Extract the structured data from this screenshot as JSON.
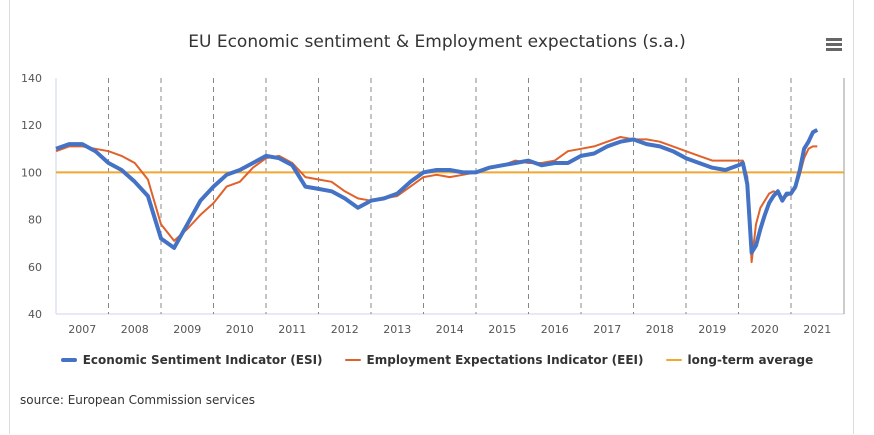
{
  "chart_data": {
    "type": "line",
    "title": "EU Economic sentiment & Employment expectations (s.a.)",
    "ylim": [
      40,
      140
    ],
    "yticks": [
      40,
      60,
      80,
      100,
      120,
      140
    ],
    "xticks": [
      "2007",
      "2008",
      "2009",
      "2010",
      "2011",
      "2012",
      "2013",
      "2014",
      "2015",
      "2016",
      "2017",
      "2018",
      "2019",
      "2020",
      "2021"
    ],
    "grid": "dashed vertical lines at year boundaries",
    "legend_position": "bottom",
    "series": [
      {
        "name": "Economic Sentiment Indicator (ESI)",
        "color": "#4472c4",
        "x": [
          "2007-01",
          "2007-04",
          "2007-07",
          "2007-10",
          "2008-01",
          "2008-04",
          "2008-07",
          "2008-10",
          "2009-01",
          "2009-04",
          "2009-07",
          "2009-10",
          "2010-01",
          "2010-04",
          "2010-07",
          "2010-10",
          "2011-01",
          "2011-04",
          "2011-07",
          "2011-10",
          "2012-01",
          "2012-04",
          "2012-07",
          "2012-10",
          "2013-01",
          "2013-04",
          "2013-07",
          "2013-10",
          "2014-01",
          "2014-04",
          "2014-07",
          "2014-10",
          "2015-01",
          "2015-04",
          "2015-07",
          "2015-10",
          "2016-01",
          "2016-04",
          "2016-07",
          "2016-10",
          "2017-01",
          "2017-04",
          "2017-07",
          "2017-10",
          "2018-01",
          "2018-04",
          "2018-07",
          "2018-10",
          "2019-01",
          "2019-04",
          "2019-07",
          "2019-10",
          "2020-01",
          "2020-02",
          "2020-03",
          "2020-04",
          "2020-05",
          "2020-06",
          "2020-07",
          "2020-08",
          "2020-09",
          "2020-10",
          "2020-11",
          "2020-12",
          "2021-01",
          "2021-02",
          "2021-03",
          "2021-04",
          "2021-05",
          "2021-06",
          "2021-07"
        ],
        "y": [
          110,
          112,
          112,
          109,
          104,
          101,
          96,
          90,
          72,
          68,
          78,
          88,
          94,
          99,
          101,
          104,
          107,
          106,
          103,
          94,
          93,
          92,
          89,
          85,
          88,
          89,
          91,
          96,
          100,
          101,
          101,
          100,
          100,
          102,
          103,
          104,
          105,
          103,
          104,
          104,
          107,
          108,
          111,
          113,
          114,
          112,
          111,
          109,
          106,
          104,
          102,
          101,
          103,
          104,
          95,
          66,
          69,
          76,
          82,
          87,
          90,
          92,
          88,
          91,
          91,
          94,
          101,
          110,
          113,
          117,
          118
        ]
      },
      {
        "name": "Employment Expectations Indicator (EEI)",
        "color": "#e0612a",
        "x": [
          "2007-01",
          "2007-04",
          "2007-07",
          "2007-10",
          "2008-01",
          "2008-04",
          "2008-07",
          "2008-10",
          "2009-01",
          "2009-04",
          "2009-07",
          "2009-10",
          "2010-01",
          "2010-04",
          "2010-07",
          "2010-10",
          "2011-01",
          "2011-04",
          "2011-07",
          "2011-10",
          "2012-01",
          "2012-04",
          "2012-07",
          "2012-10",
          "2013-01",
          "2013-04",
          "2013-07",
          "2013-10",
          "2014-01",
          "2014-04",
          "2014-07",
          "2014-10",
          "2015-01",
          "2015-04",
          "2015-07",
          "2015-10",
          "2016-01",
          "2016-04",
          "2016-07",
          "2016-10",
          "2017-01",
          "2017-04",
          "2017-07",
          "2017-10",
          "2018-01",
          "2018-04",
          "2018-07",
          "2018-10",
          "2019-01",
          "2019-04",
          "2019-07",
          "2019-10",
          "2020-01",
          "2020-02",
          "2020-03",
          "2020-04",
          "2020-05",
          "2020-06",
          "2020-07",
          "2020-08",
          "2020-09",
          "2020-10",
          "2020-11",
          "2020-12",
          "2021-01",
          "2021-02",
          "2021-03",
          "2021-04",
          "2021-05",
          "2021-06",
          "2021-07"
        ],
        "y": [
          109,
          111,
          111,
          110,
          109,
          107,
          104,
          97,
          78,
          71,
          76,
          82,
          87,
          94,
          96,
          102,
          106,
          107,
          104,
          98,
          97,
          96,
          92,
          89,
          88,
          89,
          90,
          94,
          98,
          99,
          98,
          99,
          100,
          102,
          103,
          105,
          104,
          104,
          105,
          109,
          110,
          111,
          113,
          115,
          114,
          114,
          113,
          111,
          109,
          107,
          105,
          105,
          105,
          105,
          98,
          62,
          78,
          85,
          88,
          91,
          92,
          91,
          89,
          90,
          91,
          93,
          99,
          106,
          110,
          111,
          111
        ]
      },
      {
        "name": "long-term average",
        "color": "#f0a830",
        "constant": 100
      }
    ]
  },
  "source": "source: European Commission services",
  "menu_icon": "hamburger-menu-icon"
}
